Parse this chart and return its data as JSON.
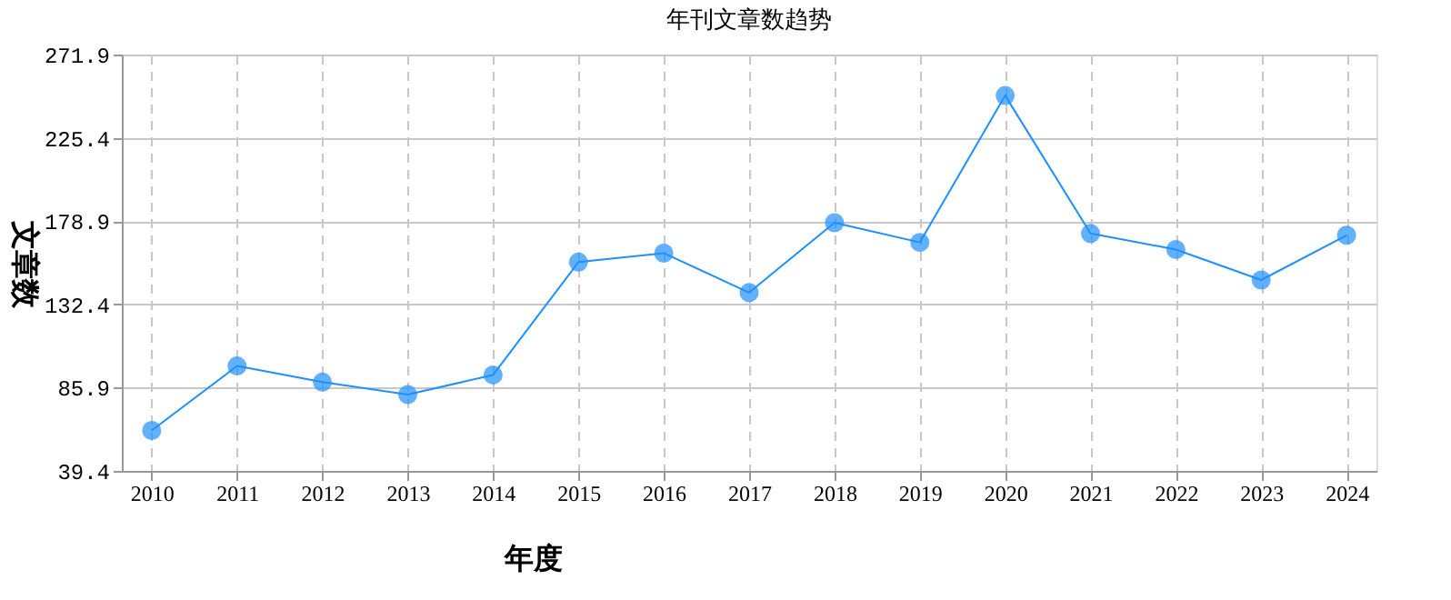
{
  "chart_data": {
    "type": "line",
    "title": "年刊文章数趋势",
    "xlabel": "年度",
    "ylabel": "文章数",
    "categories": [
      "2010",
      "2011",
      "2012",
      "2013",
      "2014",
      "2015",
      "2016",
      "2017",
      "2018",
      "2019",
      "2020",
      "2021",
      "2022",
      "2023",
      "2024"
    ],
    "series": [
      {
        "color": "#1e90ff",
        "values": [
          62,
          98,
          89,
          82,
          93,
          156,
          161,
          139,
          178,
          167,
          249,
          172,
          163,
          146,
          171
        ]
      }
    ],
    "ylim": [
      39.4,
      271.9
    ],
    "yticks": [
      39.4,
      85.9,
      132.4,
      178.9,
      225.4,
      271.9
    ],
    "grid": true,
    "legend": false,
    "marker": "circle",
    "line_style": "solid"
  }
}
